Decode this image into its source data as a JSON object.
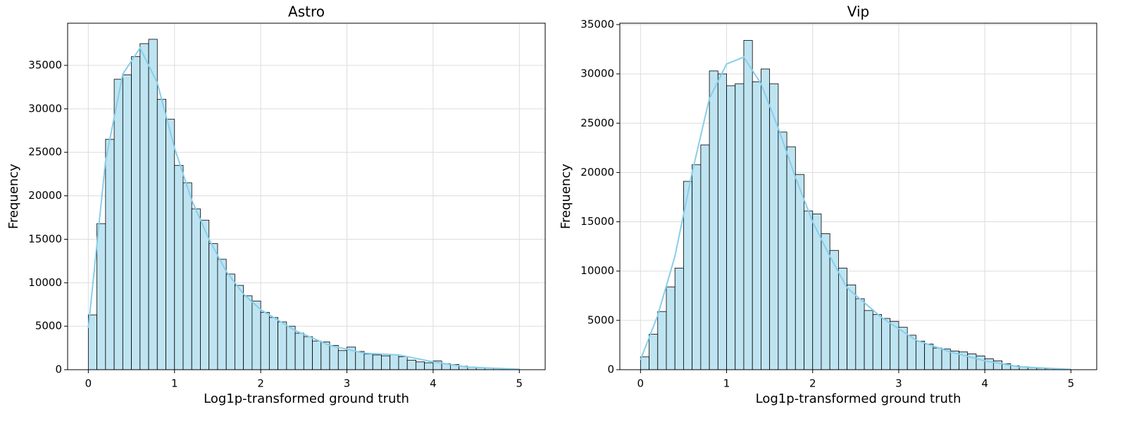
{
  "chart_data": [
    {
      "type": "histogram",
      "title": "Astro",
      "xlabel": "Log1p-transformed ground truth",
      "ylabel": "Frequency",
      "bins": [
        0,
        0.1,
        0.2,
        0.3,
        0.4,
        0.5,
        0.6,
        0.7,
        0.8,
        0.9,
        1.0,
        1.1,
        1.2,
        1.3,
        1.4,
        1.5,
        1.6,
        1.7,
        1.8,
        1.9,
        2.0,
        2.1,
        2.2,
        2.3,
        2.4,
        2.5,
        2.6,
        2.7,
        2.8,
        2.9,
        3.0,
        3.1,
        3.2,
        3.3,
        3.4,
        3.5,
        3.6,
        3.7,
        3.8,
        3.9,
        4.0,
        4.1,
        4.2,
        4.3,
        4.4,
        4.5,
        4.6,
        4.7,
        4.8,
        4.9,
        5.0
      ],
      "values": [
        6300,
        16800,
        26500,
        33400,
        33900,
        36000,
        37500,
        38000,
        31100,
        28800,
        23500,
        21500,
        18500,
        17200,
        14500,
        12700,
        11000,
        9700,
        8500,
        7900,
        6600,
        6000,
        5500,
        5000,
        4200,
        3800,
        3300,
        3200,
        2800,
        2200,
        2600,
        2100,
        1800,
        1700,
        1600,
        1700,
        1500,
        1100,
        900,
        800,
        1000,
        700,
        600,
        400,
        300,
        250,
        200,
        150,
        100,
        50
      ],
      "color": "#bfe4f1",
      "edgecolor": "#000000",
      "kde": {
        "color": "#87ceeb",
        "x": [
          0,
          0.2,
          0.4,
          0.6,
          0.8,
          1.0,
          1.2,
          1.4,
          1.6,
          1.8,
          2.0,
          2.4,
          2.8,
          3.2,
          3.6,
          4.0,
          4.4,
          5.0
        ],
        "values": [
          4800,
          24000,
          34000,
          37000,
          33000,
          25500,
          19500,
          15000,
          11300,
          8700,
          6900,
          4500,
          2800,
          1900,
          1700,
          900,
          300,
          50
        ]
      },
      "xlim": [
        -0.24,
        5.3
      ],
      "ylim": [
        0,
        39850
      ],
      "xticks": [
        0,
        1,
        2,
        3,
        4,
        5
      ],
      "yticks": [
        0,
        5000,
        10000,
        15000,
        20000,
        25000,
        30000,
        35000
      ],
      "grid": true
    },
    {
      "type": "histogram",
      "title": "Vip",
      "xlabel": "Log1p-transformed ground truth",
      "ylabel": "Frequency",
      "bins": [
        0,
        0.1,
        0.2,
        0.3,
        0.4,
        0.5,
        0.6,
        0.7,
        0.8,
        0.9,
        1.0,
        1.1,
        1.2,
        1.3,
        1.4,
        1.5,
        1.6,
        1.7,
        1.8,
        1.9,
        2.0,
        2.1,
        2.2,
        2.3,
        2.4,
        2.5,
        2.6,
        2.7,
        2.8,
        2.9,
        3.0,
        3.1,
        3.2,
        3.3,
        3.4,
        3.5,
        3.6,
        3.7,
        3.8,
        3.9,
        4.0,
        4.1,
        4.2,
        4.3,
        4.4,
        4.5,
        4.6,
        4.7,
        4.8,
        4.9,
        5.0
      ],
      "values": [
        1300,
        3600,
        5900,
        8400,
        10300,
        19100,
        20800,
        22800,
        30300,
        30000,
        28800,
        29000,
        33400,
        29200,
        30500,
        29000,
        24100,
        22600,
        19800,
        16100,
        15800,
        13800,
        12100,
        10300,
        8600,
        7200,
        6000,
        5600,
        5200,
        4900,
        4300,
        3500,
        2900,
        2600,
        2200,
        2100,
        1900,
        1800,
        1600,
        1400,
        1100,
        900,
        600,
        400,
        300,
        200,
        150,
        100,
        50,
        30
      ],
      "color": "#bfe4f1",
      "edgecolor": "#000000",
      "kde": {
        "color": "#87ceeb",
        "x": [
          0,
          0.2,
          0.4,
          0.6,
          0.8,
          1.0,
          1.2,
          1.4,
          1.6,
          1.8,
          2.0,
          2.2,
          2.4,
          2.8,
          3.2,
          3.6,
          4.0,
          4.4,
          5.0
        ],
        "values": [
          1000,
          5500,
          11500,
          20000,
          27500,
          31000,
          31700,
          29000,
          24500,
          19500,
          15000,
          11500,
          8300,
          5300,
          3000,
          1800,
          900,
          300,
          30
        ]
      },
      "xlim": [
        -0.24,
        5.3
      ],
      "ylim": [
        0,
        35140
      ],
      "xticks": [
        0,
        1,
        2,
        3,
        4,
        5
      ],
      "yticks": [
        0,
        5000,
        10000,
        15000,
        20000,
        25000,
        30000,
        35000
      ],
      "grid": true
    }
  ]
}
